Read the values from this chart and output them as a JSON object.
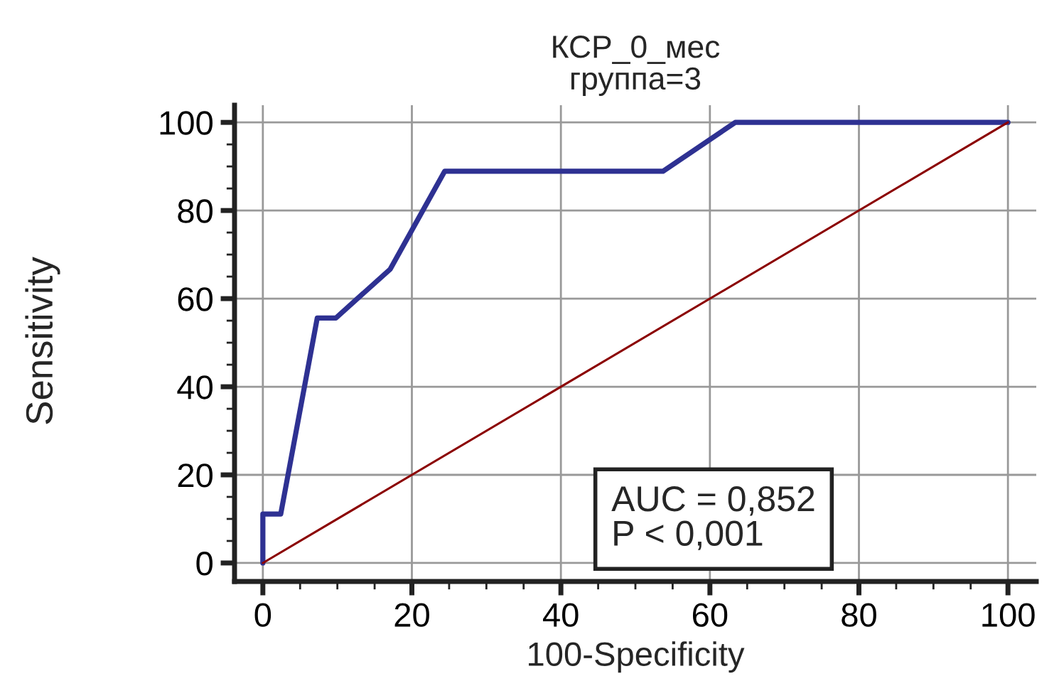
{
  "chart_data": {
    "type": "line",
    "title": "КСР_0_мес\nгруппа=3",
    "xlabel": "100-Specificity",
    "ylabel": "Sensitivity",
    "series": [
      {
        "color": "#2e3192",
        "x": [
          0,
          0,
          2.4,
          7.3,
          9.8,
          17.1,
          24.4,
          53.7,
          63.4,
          100
        ],
        "values": [
          0,
          11.1,
          11.1,
          55.6,
          55.6,
          66.7,
          88.9,
          88.9,
          100,
          100
        ]
      },
      {
        "color": "#8b0000",
        "x": [
          0,
          100
        ],
        "values": [
          0,
          100
        ]
      }
    ],
    "xlim": [
      -3.8,
      103.8
    ],
    "ylim": [
      -4.2,
      103.9
    ],
    "xticks": [
      0,
      20,
      40,
      60,
      80,
      100
    ],
    "yticks": [
      0,
      20,
      40,
      60,
      80,
      100
    ],
    "grid": true,
    "annotations": [
      "AUC = 0,852\nP < 0,001"
    ]
  }
}
